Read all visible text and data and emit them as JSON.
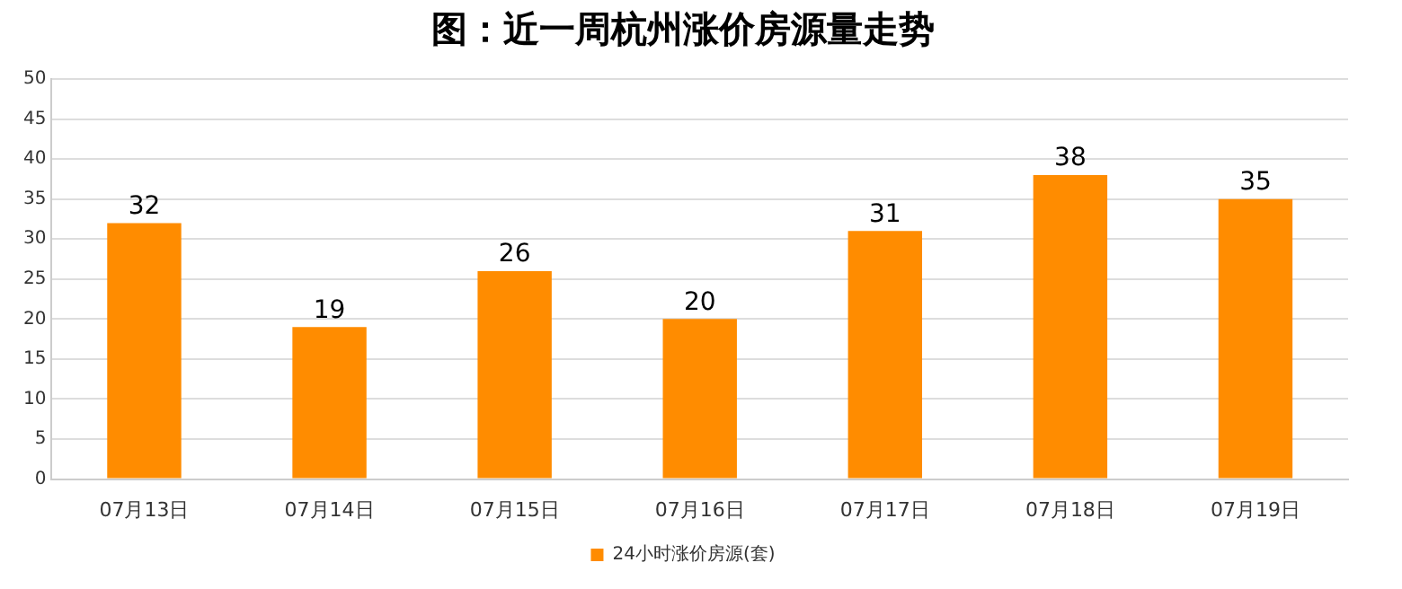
{
  "chart_data": {
    "type": "bar",
    "title": "图：近一周杭州涨价房源量走势",
    "categories": [
      "07月13日",
      "07月14日",
      "07月15日",
      "07月16日",
      "07月17日",
      "07月18日",
      "07月19日"
    ],
    "series": [
      {
        "name": "24小时涨价房源(套)",
        "color": "#ff8c00",
        "values": [
          32,
          19,
          26,
          20,
          31,
          38,
          35
        ]
      }
    ],
    "ylim": [
      0,
      50
    ],
    "yticks": [
      0,
      5,
      10,
      15,
      20,
      25,
      30,
      35,
      40,
      45,
      50
    ],
    "grid": "y",
    "legend": "bottom",
    "data_labels": true
  }
}
